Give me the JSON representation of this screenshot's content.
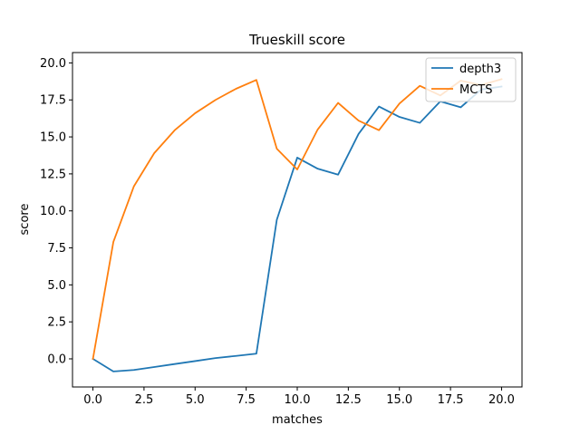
{
  "chart_data": {
    "type": "line",
    "title": "Trueskill score",
    "xlabel": "matches",
    "ylabel": "score",
    "xlim": [
      -1,
      21
    ],
    "ylim": [
      -1.9,
      20.7
    ],
    "xticks": [
      0,
      2.5,
      5,
      7.5,
      10,
      12.5,
      15,
      17.5,
      20
    ],
    "xtick_labels": [
      "0.0",
      "2.5",
      "5.0",
      "7.5",
      "10.0",
      "12.5",
      "15.0",
      "17.5",
      "20.0"
    ],
    "yticks": [
      0,
      2.5,
      5,
      7.5,
      10,
      12.5,
      15,
      17.5,
      20
    ],
    "ytick_labels": [
      "0.0",
      "2.5",
      "5.0",
      "7.5",
      "10.0",
      "12.5",
      "15.0",
      "17.5",
      "20.0"
    ],
    "grid": false,
    "legend_position": "top-right",
    "series": [
      {
        "name": "depth3",
        "color": "#1f77b4",
        "x": [
          0,
          1,
          2,
          3,
          4,
          5,
          6,
          7,
          8,
          9,
          10,
          11,
          12,
          13,
          14,
          15,
          16,
          17,
          18,
          19,
          20
        ],
        "values": [
          0.0,
          -0.85,
          -0.75,
          -0.55,
          -0.35,
          -0.15,
          0.05,
          0.2,
          0.35,
          9.4,
          13.6,
          12.85,
          12.45,
          15.2,
          17.05,
          16.35,
          15.95,
          17.4,
          17.0,
          18.2,
          18.4
        ]
      },
      {
        "name": "MCTS",
        "color": "#ff7f0e",
        "x": [
          0,
          1,
          2,
          3,
          4,
          5,
          6,
          7,
          8,
          9,
          10,
          11,
          12,
          13,
          14,
          15,
          16,
          17,
          18,
          19,
          20
        ],
        "values": [
          0.0,
          7.9,
          11.65,
          13.9,
          15.45,
          16.6,
          17.5,
          18.25,
          18.85,
          14.2,
          12.8,
          15.5,
          17.3,
          16.1,
          15.45,
          17.25,
          18.45,
          17.8,
          18.8,
          18.5,
          18.9
        ]
      }
    ]
  }
}
